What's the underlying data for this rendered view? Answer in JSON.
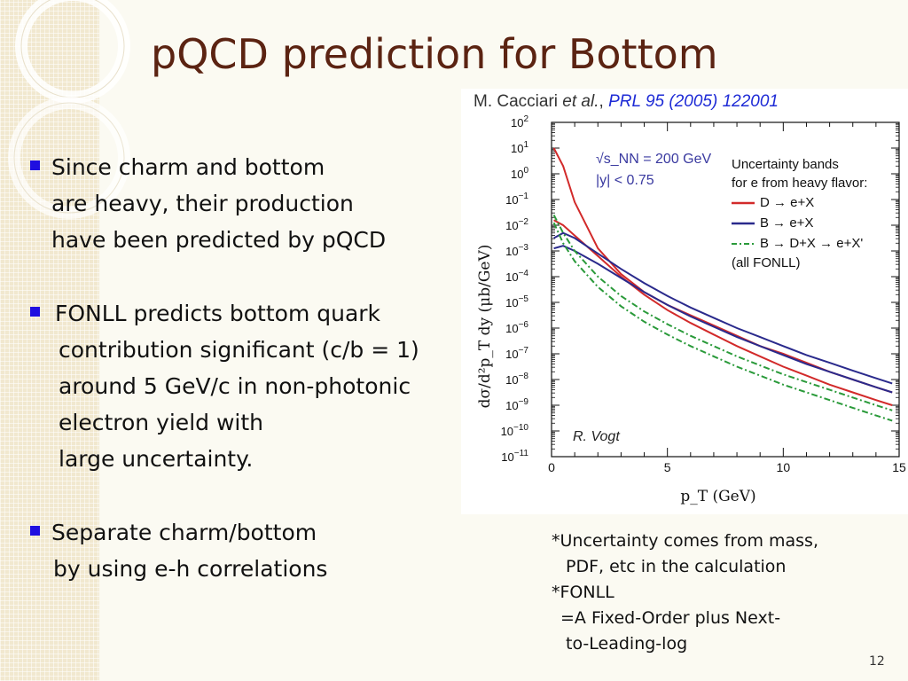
{
  "slide": {
    "title": "pQCD prediction for Bottom",
    "page_number": "12",
    "bullets": [
      {
        "lines": [
          "Since charm and bottom",
          "are heavy, their production",
          "have been predicted by pQCD"
        ]
      },
      {
        "lines": [
          "FONLL predicts bottom quark",
          "contribution significant (c/b = 1)",
          "around 5 GeV/c in non-photonic",
          "electron yield with",
          "large uncertainty."
        ]
      },
      {
        "lines": [
          "Separate charm/bottom",
          "by using e-h correlations"
        ]
      }
    ],
    "notes": [
      "*Uncertainty comes from mass,",
      "PDF, etc in the calculation",
      "*FONLL",
      "=A Fixed-Order plus Next-",
      "to-Leading-log"
    ],
    "colors": {
      "title": "#5b2312",
      "bullet": "#1f0fe0"
    }
  },
  "chart_data": {
    "type": "line",
    "citation": {
      "authors": "M. Cacciari",
      "etal": "et al.",
      "comma": ",",
      "journal": "PRL 95 (2005) 122001"
    },
    "xlabel": "p_T (GeV)",
    "ylabel": "dσ/d²p_T dy (μb/GeV)",
    "xlim": [
      0,
      15
    ],
    "ylim_log10": [
      -11,
      2
    ],
    "y_scale": "log",
    "x_ticks": [
      "0",
      "5",
      "10",
      "15"
    ],
    "y_tick_exponents": [
      "2",
      "1",
      "0",
      "−1",
      "−2",
      "−3",
      "−4",
      "−5",
      "−6",
      "−7",
      "−8",
      "−9",
      "−10",
      "−11"
    ],
    "conditions": [
      "√s_NN = 200 GeV",
      "|y| < 0.75"
    ],
    "legend_title": [
      "Uncertainty bands",
      "for e from heavy flavor:"
    ],
    "legend_note": "(all FONLL)",
    "credit": "R. Vogt",
    "series": [
      {
        "name": "D → e+X",
        "color": "#d22a2a",
        "dash": "solid",
        "upper": {
          "x": [
            0.1,
            0.5,
            1,
            2,
            3,
            4,
            5,
            6,
            7,
            8,
            9,
            10,
            11,
            12,
            13,
            14,
            14.7
          ],
          "log10y": [
            1.0,
            0.3,
            -1.1,
            -2.9,
            -3.9,
            -4.6,
            -5.1,
            -5.5,
            -5.9,
            -6.3,
            -6.7,
            -7.0,
            -7.35,
            -7.7,
            -8.0,
            -8.3,
            -8.5
          ]
        },
        "lower": {
          "x": [
            0.1,
            0.5,
            1,
            2,
            3,
            4,
            5,
            6,
            7,
            8,
            9,
            10,
            11,
            12,
            13,
            14,
            14.7
          ],
          "log10y": [
            -1.8,
            -2.0,
            -2.4,
            -3.2,
            -4.0,
            -4.7,
            -5.3,
            -5.8,
            -6.25,
            -6.7,
            -7.1,
            -7.5,
            -7.85,
            -8.2,
            -8.5,
            -8.8,
            -9.0
          ]
        }
      },
      {
        "name": "B → e+X",
        "color": "#2a2a8c",
        "dash": "solid",
        "upper": {
          "x": [
            0.1,
            0.5,
            1,
            2,
            3,
            4,
            5,
            6,
            7,
            8,
            9,
            10,
            11,
            12,
            13,
            14,
            14.7
          ],
          "log10y": [
            -2.5,
            -2.3,
            -2.5,
            -3.1,
            -3.7,
            -4.25,
            -4.75,
            -5.2,
            -5.6,
            -6.0,
            -6.35,
            -6.7,
            -7.05,
            -7.35,
            -7.65,
            -7.95,
            -8.15
          ]
        },
        "lower": {
          "x": [
            0.1,
            0.5,
            1,
            2,
            3,
            4,
            5,
            6,
            7,
            8,
            9,
            10,
            11,
            12,
            13,
            14,
            14.7
          ],
          "log10y": [
            -2.9,
            -2.8,
            -3.0,
            -3.5,
            -4.05,
            -4.6,
            -5.1,
            -5.55,
            -5.95,
            -6.35,
            -6.7,
            -7.05,
            -7.4,
            -7.7,
            -8.0,
            -8.3,
            -8.5
          ]
        }
      },
      {
        "name": "B → D+X → e+X'",
        "color": "#2a9a3a",
        "dash": "dashdot",
        "upper": {
          "x": [
            0.1,
            0.5,
            1,
            2,
            3,
            4,
            5,
            6,
            7,
            8,
            9,
            10,
            11,
            12,
            13,
            14,
            14.7
          ],
          "log10y": [
            -1.6,
            -2.3,
            -3.0,
            -4.0,
            -4.75,
            -5.35,
            -5.85,
            -6.3,
            -6.7,
            -7.1,
            -7.45,
            -7.8,
            -8.1,
            -8.4,
            -8.7,
            -9.0,
            -9.2
          ]
        },
        "lower": {
          "x": [
            0.1,
            0.5,
            1,
            2,
            3,
            4,
            5,
            6,
            7,
            8,
            9,
            10,
            11,
            12,
            13,
            14,
            14.7
          ],
          "log10y": [
            -1.9,
            -2.7,
            -3.4,
            -4.4,
            -5.15,
            -5.75,
            -6.25,
            -6.7,
            -7.1,
            -7.5,
            -7.85,
            -8.2,
            -8.5,
            -8.8,
            -9.1,
            -9.4,
            -9.6
          ]
        }
      }
    ]
  }
}
